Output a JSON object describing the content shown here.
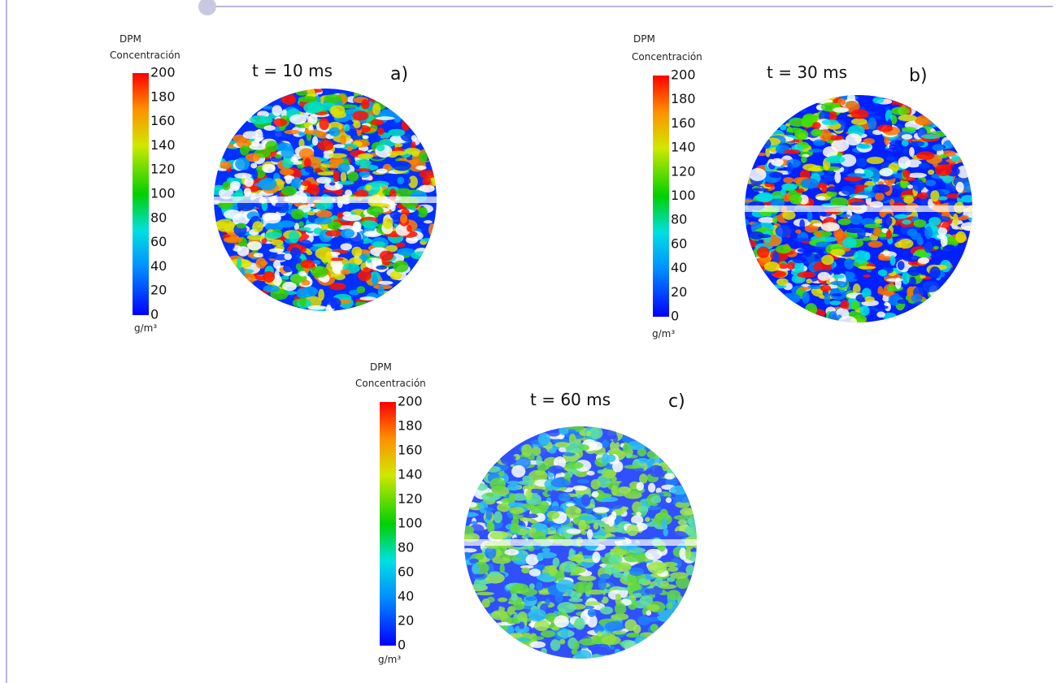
{
  "panels": [
    {
      "title": "DPM",
      "subtitle": "Concentración",
      "ticks": [
        0,
        20,
        40,
        60,
        80,
        100,
        120,
        140,
        160,
        180,
        200
      ],
      "unit": "g/m³",
      "time": "t = 10 ms",
      "letter": "a)"
    },
    {
      "title": "DPM",
      "subtitle": "Concentración",
      "ticks": [
        0,
        20,
        40,
        60,
        80,
        100,
        120,
        140,
        160,
        180,
        200
      ],
      "unit": "g/m³",
      "time": "t = 30 ms",
      "letter": "b)"
    },
    {
      "title": "DPM",
      "subtitle": "Concentración",
      "ticks": [
        0,
        20,
        40,
        60,
        80,
        100,
        120,
        140,
        160,
        180,
        200
      ],
      "unit": "g/m³",
      "time": "t = 60 ms",
      "letter": "c)"
    }
  ]
}
